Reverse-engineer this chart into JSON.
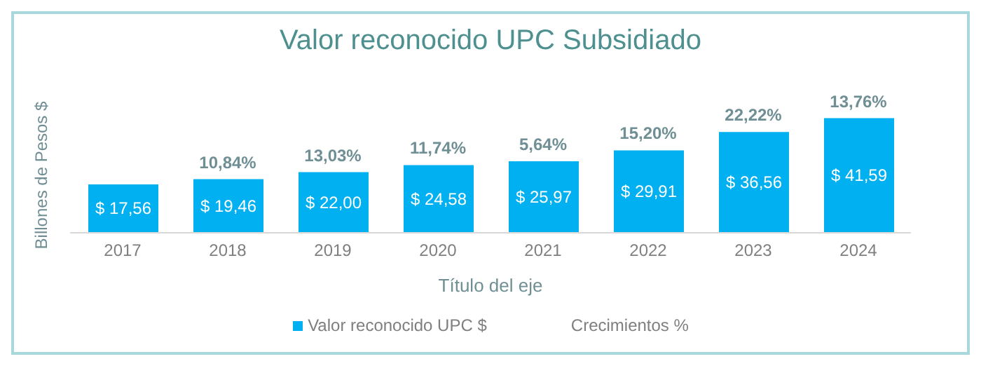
{
  "chart_data": {
    "type": "bar",
    "title": "Valor reconocido UPC Subsidiado",
    "xlabel": "Título del eje",
    "ylabel": "Billones de Pesos $",
    "categories": [
      "2017",
      "2018",
      "2019",
      "2020",
      "2021",
      "2022",
      "2023",
      "2024"
    ],
    "series": [
      {
        "name": "Valor reconocido UPC $",
        "color": "#00b0f0",
        "values": [
          17.56,
          19.46,
          22.0,
          24.58,
          25.97,
          29.91,
          36.56,
          41.59
        ],
        "value_labels": [
          "$ 17,56",
          "$ 19,46",
          "$ 22,00",
          "$ 24,58",
          "$ 25,97",
          "$ 29,91",
          "$ 36,56",
          "$ 41,59"
        ]
      },
      {
        "name": "Crecimientos %",
        "type": "line",
        "values": [
          null,
          null,
          null,
          null,
          null,
          null,
          null,
          null
        ]
      }
    ],
    "annotations": [
      {
        "text": "10,84%",
        "x": "2018",
        "y": 19.46
      },
      {
        "text": "13,03%",
        "x": "2019",
        "y": 22.0
      },
      {
        "text": "11,74%",
        "x": "2020",
        "y": 24.58
      },
      {
        "text": "5,64%",
        "x": "2021",
        "y": 25.97
      },
      {
        "text": "15,20%",
        "x": "2022",
        "y": 29.91
      },
      {
        "text": "22,22%",
        "x": "2023",
        "y": 36.56
      },
      {
        "text": "13,76%",
        "x": "2024",
        "y": 41.59
      }
    ],
    "legend": "bottom",
    "tick_labels": "x"
  }
}
